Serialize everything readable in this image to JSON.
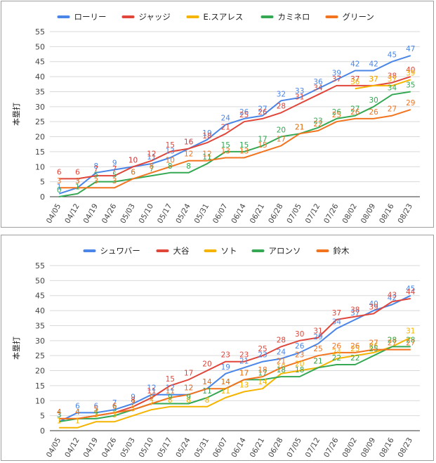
{
  "charts": [
    {
      "ylabel": "本塁打",
      "xlabel": "",
      "legend": [
        "ローリー",
        "ジャッジ",
        "E.スアレス",
        "カミネロ",
        "グリーン"
      ],
      "colors": {
        "ローリー": "#4a86e8",
        "ジャッジ": "#e0463a",
        "E.スアレス": "#f4b400",
        "カミネロ": "#34a853",
        "グリーン": "#f2741f"
      }
    },
    {
      "ylabel": "本塁打",
      "xlabel": "",
      "legend": [
        "シュワバー",
        "大谷",
        "ソト",
        "アロンソ",
        "鈴木"
      ],
      "colors": {
        "シュワバー": "#4a86e8",
        "大谷": "#e0463a",
        "ソト": "#f4b400",
        "アロンソ": "#34a853",
        "鈴木": "#f2741f"
      }
    }
  ],
  "chart_data": [
    {
      "type": "line",
      "title": "",
      "xlabel": "",
      "ylabel": "本塁打",
      "ylim": [
        0,
        55
      ],
      "yticks": [
        0,
        5,
        10,
        15,
        20,
        25,
        30,
        35,
        40,
        45,
        50,
        55
      ],
      "grid": true,
      "legend_position": "top",
      "categories": [
        "04/05",
        "04/12",
        "04/19",
        "04/26",
        "05/03",
        "05/10",
        "05/17",
        "05/24",
        "05/31",
        "06/07",
        "06/14",
        "06/21",
        "06/28",
        "07/05",
        "07/12",
        "07/26",
        "08/02",
        "08/09",
        "08/16",
        "08/23"
      ],
      "series": [
        {
          "name": "ローリー",
          "color": "#4a86e8",
          "values": [
            1,
            3,
            8,
            9,
            10,
            11,
            13,
            16,
            19,
            24,
            26,
            27,
            32,
            33,
            36,
            39,
            42,
            42,
            45,
            47
          ]
        },
        {
          "name": "ジャッジ",
          "color": "#e0463a",
          "values": [
            6,
            6,
            7,
            7,
            10,
            12,
            15,
            16,
            18,
            21,
            25,
            26,
            28,
            31,
            34,
            37,
            37,
            37,
            38,
            40
          ]
        },
        {
          "name": "E.スアレス",
          "color": "#f4b400",
          "values": [
            null,
            null,
            null,
            null,
            null,
            null,
            null,
            null,
            null,
            null,
            null,
            null,
            null,
            null,
            null,
            null,
            36,
            37,
            37,
            39
          ]
        },
        {
          "name": "カミネロ",
          "color": "#34a853",
          "values": [
            0,
            1,
            5,
            5,
            6,
            7,
            8,
            8,
            11,
            15,
            15,
            17,
            20,
            21,
            23,
            26,
            27,
            30,
            34,
            35
          ]
        },
        {
          "name": "グリーン",
          "color": "#f2741f",
          "values": [
            3,
            3,
            3,
            3,
            6,
            8,
            10,
            12,
            12,
            13,
            13,
            15,
            17,
            21,
            22,
            25,
            26,
            26,
            27,
            29
          ]
        }
      ],
      "data_labels": [
        [
          "1",
          "3",
          "8",
          "9",
          "10",
          "11",
          "13",
          "16",
          "19",
          "24",
          "26",
          "27",
          "32",
          "33",
          "36",
          "39",
          "42",
          "42",
          "45",
          "47"
        ],
        [
          "6",
          "6",
          "7",
          "7",
          "10",
          "12",
          "15",
          "16",
          "18",
          "21",
          "25",
          "26",
          "28",
          "31",
          "34",
          "37",
          "37",
          "37",
          "38",
          "40"
        ],
        [
          "",
          "",
          "",
          "",
          "",
          "",
          "",
          "",
          "",
          "",
          "",
          "",
          "",
          "",
          "",
          "",
          "36",
          "37",
          "37",
          "39"
        ],
        [
          "0",
          "1",
          "5",
          "5",
          "6",
          "7",
          "8",
          "8",
          "11",
          "15",
          "15",
          "17",
          "20",
          "21",
          "23",
          "26",
          "27",
          "30",
          "34",
          "35"
        ],
        [
          "3",
          "3",
          "3",
          "3",
          "6",
          "8",
          "10",
          "12",
          "12",
          "13",
          "13",
          "15",
          "17",
          "21",
          "22",
          "25",
          "26",
          "26",
          "27",
          "29"
        ]
      ]
    },
    {
      "type": "line",
      "title": "",
      "xlabel": "",
      "ylabel": "本塁打",
      "ylim": [
        0,
        55
      ],
      "yticks": [
        0,
        5,
        10,
        15,
        20,
        25,
        30,
        35,
        40,
        45,
        50,
        55
      ],
      "grid": true,
      "legend_position": "top",
      "categories": [
        "04/05",
        "04/12",
        "04/19",
        "04/26",
        "05/03",
        "05/10",
        "05/17",
        "05/24",
        "05/31",
        "06/07",
        "06/14",
        "06/21",
        "06/28",
        "07/05",
        "07/12",
        "07/26",
        "08/02",
        "08/09",
        "08/16",
        "08/23"
      ],
      "series": [
        {
          "name": "シュワバー",
          "color": "#4a86e8",
          "values": [
            3,
            6,
            6,
            7,
            9,
            12,
            12,
            12,
            14,
            19,
            21,
            23,
            24,
            26,
            29,
            34,
            37,
            40,
            42,
            45
          ]
        },
        {
          "name": "大谷",
          "color": "#e0463a",
          "values": [
            4,
            4,
            5,
            6,
            8,
            11,
            15,
            17,
            20,
            23,
            23,
            25,
            28,
            30,
            31,
            37,
            38,
            39,
            43,
            44
          ]
        },
        {
          "name": "ソト",
          "color": "#f4b400",
          "values": [
            1,
            1,
            3,
            3,
            5,
            7,
            8,
            8,
            8,
            11,
            13,
            14,
            19,
            20,
            21,
            24,
            25,
            26,
            28,
            31
          ]
        },
        {
          "name": "アロンソ",
          "color": "#34a853",
          "values": [
            3,
            4,
            4,
            5,
            7,
            9,
            9,
            9,
            11,
            14,
            17,
            17,
            18,
            18,
            21,
            22,
            22,
            25,
            28,
            28
          ]
        },
        {
          "name": "鈴木",
          "color": "#f2741f",
          "values": [
            4,
            4,
            5,
            6,
            7,
            9,
            11,
            12,
            14,
            14,
            17,
            18,
            21,
            23,
            25,
            26,
            26,
            27,
            27,
            27
          ]
        }
      ],
      "data_labels": [
        [
          "3",
          "6",
          "6",
          "7",
          "9",
          "12",
          "12",
          "12",
          "14",
          "19",
          "21",
          "23",
          "24",
          "26",
          "29",
          "34",
          "37",
          "40",
          "42",
          "45"
        ],
        [
          "4",
          "4",
          "5",
          "6",
          "8",
          "11",
          "15",
          "17",
          "20",
          "23",
          "23",
          "25",
          "28",
          "30",
          "31",
          "37",
          "38",
          "39",
          "43",
          "44"
        ],
        [
          "1",
          "1",
          "3",
          "3",
          "5",
          "7",
          "8",
          "8",
          "8",
          "11",
          "13",
          "14",
          "19",
          "20",
          "21",
          "24",
          "25",
          "26",
          "28",
          "31"
        ],
        [
          "3",
          "4",
          "4",
          "5",
          "7",
          "9",
          "9",
          "9",
          "11",
          "14",
          "17",
          "17",
          "18",
          "18",
          "21",
          "22",
          "22",
          "25",
          "28",
          "28"
        ],
        [
          "4",
          "4",
          "5",
          "6",
          "7",
          "9",
          "11",
          "12",
          "14",
          "14",
          "17",
          "18",
          "21",
          "23",
          "25",
          "26",
          "26",
          "27",
          "27",
          "27"
        ]
      ]
    }
  ]
}
